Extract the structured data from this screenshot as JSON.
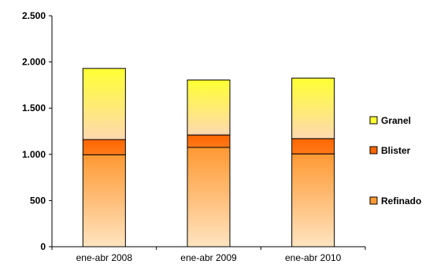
{
  "chart_data": {
    "type": "bar",
    "stacked": true,
    "categories": [
      "ene-abr 2008",
      "ene-abr 2009",
      "ene-abr 2010"
    ],
    "series": [
      {
        "name": "Refinado",
        "values": [
          995,
          1075,
          1005
        ],
        "color": "#FF9933"
      },
      {
        "name": "Blister",
        "values": [
          165,
          135,
          165
        ],
        "color": "#FF6600"
      },
      {
        "name": "Granel",
        "values": [
          770,
          595,
          655
        ],
        "color": "#FFFF33"
      }
    ],
    "ylim": [
      0,
      2500
    ],
    "yticks": [
      0,
      500,
      1000,
      1500,
      2000,
      2500
    ],
    "ytick_labels": [
      "0",
      "500",
      "1.000",
      "1.500",
      "2.000",
      "2.500"
    ],
    "legend_position": "right",
    "legend_order": [
      "Granel",
      "Blister",
      "Refinado"
    ],
    "grid": false
  }
}
